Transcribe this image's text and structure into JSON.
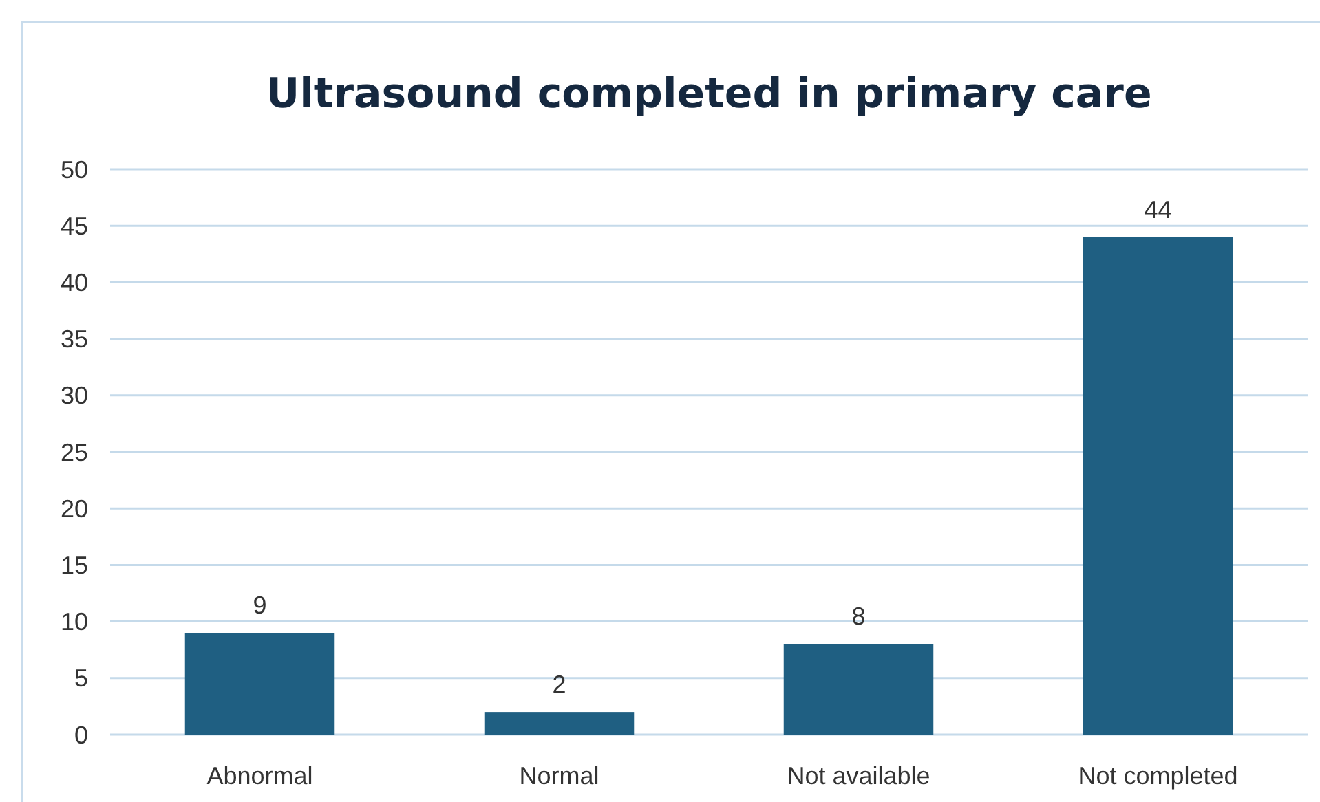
{
  "chart_data": {
    "type": "bar",
    "title": "Ultrasound completed in primary care",
    "categories": [
      "Abnormal",
      "Normal",
      "Not available",
      "Not completed"
    ],
    "values": [
      9,
      2,
      8,
      44
    ],
    "color": "#1f5f82",
    "ylim": [
      0,
      50
    ],
    "yticks": [
      0,
      5,
      10,
      15,
      20,
      25,
      30,
      35,
      40,
      45,
      50
    ],
    "grid": "y",
    "data_labels": true
  }
}
